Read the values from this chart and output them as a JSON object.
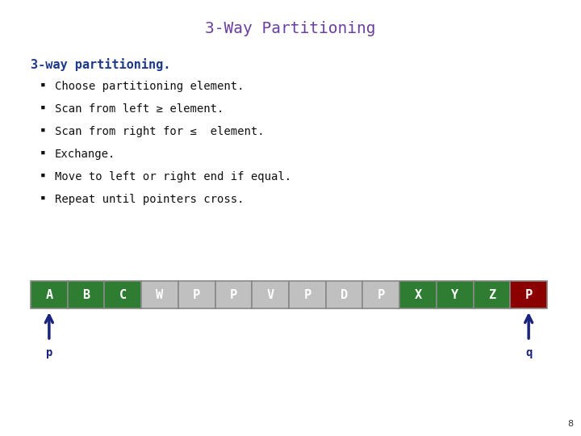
{
  "title": "3-Way Partitioning",
  "title_color": "#6B3FA0",
  "title_fontsize": 14,
  "subtitle": "3-way partitioning.",
  "subtitle_color": "#1E3A8A",
  "subtitle_fontsize": 11,
  "bullets": [
    "Choose partitioning element.",
    "Scan from left ≥ element.",
    "Scan from right for ≤  element.",
    "Exchange.",
    "Move to left or right end if equal.",
    "Repeat until pointers cross."
  ],
  "bullet_color": "#111111",
  "bullet_fontsize": 10,
  "array_labels": [
    "A",
    "B",
    "C",
    "W",
    "P",
    "P",
    "V",
    "P",
    "D",
    "P",
    "X",
    "Y",
    "Z",
    "P"
  ],
  "array_colors": [
    "#2e7d32",
    "#2e7d32",
    "#2e7d32",
    "#c0c0c0",
    "#c0c0c0",
    "#c0c0c0",
    "#c0c0c0",
    "#c0c0c0",
    "#c0c0c0",
    "#c0c0c0",
    "#2e7d32",
    "#2e7d32",
    "#2e7d32",
    "#8b0000"
  ],
  "array_text_color": "#ffffff",
  "pointer_color": "#1a237e",
  "page_number": "8",
  "background_color": "#ffffff"
}
